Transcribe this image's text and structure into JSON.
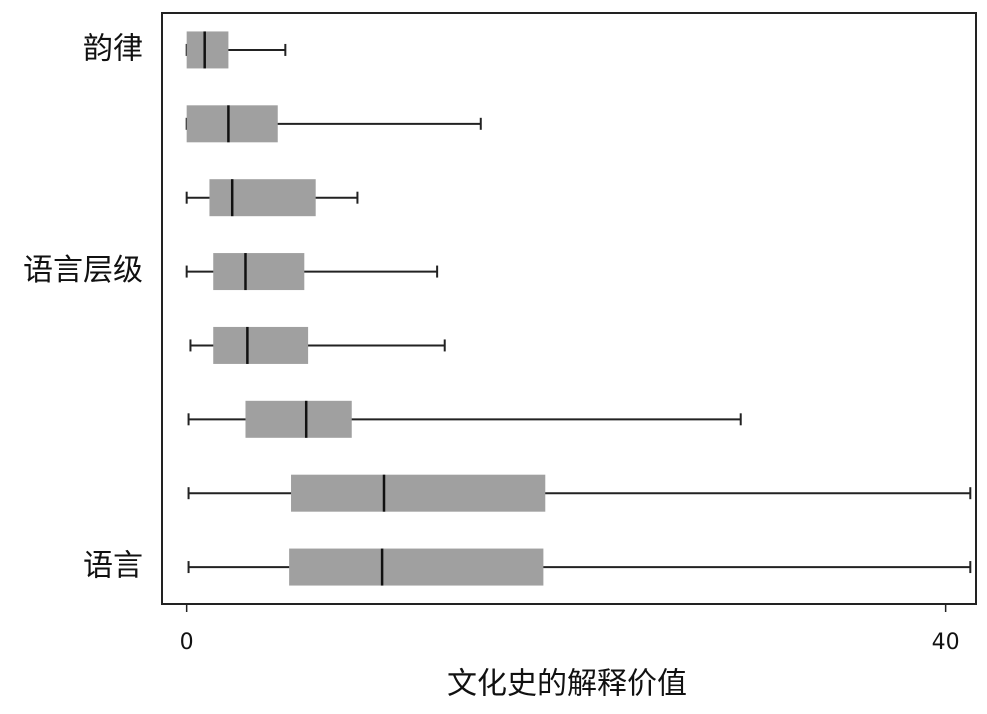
{
  "chart_data": {
    "type": "boxplot",
    "orientation": "horizontal",
    "xlabel": "文化史的解释价值",
    "categories": [
      "韵律",
      null,
      null,
      "语言层级",
      null,
      null,
      null,
      "语言"
    ],
    "boxes": [
      {
        "min": 0,
        "q1": 0,
        "median": 0.95,
        "q3": 2.2,
        "max": 5.2
      },
      {
        "min": 0,
        "q1": 0,
        "median": 2.2,
        "q3": 4.8,
        "max": 15.5
      },
      {
        "min": 0,
        "q1": 1.2,
        "median": 2.4,
        "q3": 6.8,
        "max": 9.0
      },
      {
        "min": 0,
        "q1": 1.4,
        "median": 3.1,
        "q3": 6.2,
        "max": 13.2
      },
      {
        "min": 0.2,
        "q1": 1.4,
        "median": 3.2,
        "q3": 6.4,
        "max": 13.6
      },
      {
        "min": 0.1,
        "q1": 3.1,
        "median": 6.3,
        "q3": 8.7,
        "max": 29.2
      },
      {
        "min": 0.1,
        "q1": 5.5,
        "median": 10.4,
        "q3": 18.9,
        "max": 41.3
      },
      {
        "min": 0.1,
        "q1": 5.4,
        "median": 10.3,
        "q3": 18.8,
        "max": 41.3
      }
    ],
    "color": "#a0a0a0",
    "xlim": [
      -1.3,
      41.6
    ],
    "xticks": [
      0,
      40
    ]
  }
}
